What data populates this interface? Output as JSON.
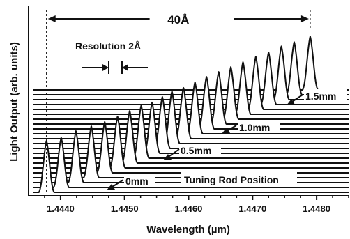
{
  "chart_data": {
    "type": "line",
    "title": "",
    "xlabel": "Wavelength (µm)",
    "ylabel": "Light Output (arb. units)",
    "xlim": [
      1.4435,
      1.4485
    ],
    "xticks": [
      1.444,
      1.445,
      1.446,
      1.447,
      1.448
    ],
    "xtick_labels": [
      "1.4440",
      "1.4450",
      "1.4460",
      "1.4470",
      "1.4480"
    ],
    "grid": false,
    "series_note": "stacked spectra, one per tuning rod position, offset vertically",
    "peaks_um": [
      1.44378,
      1.44401,
      1.44424,
      1.44448,
      1.44469,
      1.44489,
      1.44508,
      1.44526,
      1.44543,
      1.44559,
      1.44574,
      1.44592,
      1.4461,
      1.44628,
      1.44647,
      1.44666,
      1.44685,
      1.44705,
      1.44725,
      1.44745,
      1.44765,
      1.4479
    ],
    "peak_height_arb": [
      0.85,
      0.82,
      0.85,
      0.85,
      0.84,
      0.85,
      0.86,
      0.87,
      0.84,
      0.85,
      0.86,
      0.84,
      0.85,
      0.86,
      0.86,
      0.86,
      0.86,
      0.87,
      0.86,
      0.88,
      0.87,
      0.88
    ],
    "annotations": {
      "span_label": "40Å",
      "span_start_um": 1.44378,
      "span_end_um": 1.4479,
      "resolution_label": "Resolution 2Å",
      "positions": [
        "0mm",
        "0.5mm",
        "1.0mm",
        "1.5mm"
      ],
      "tuning_label": "Tuning Rod Position"
    }
  }
}
